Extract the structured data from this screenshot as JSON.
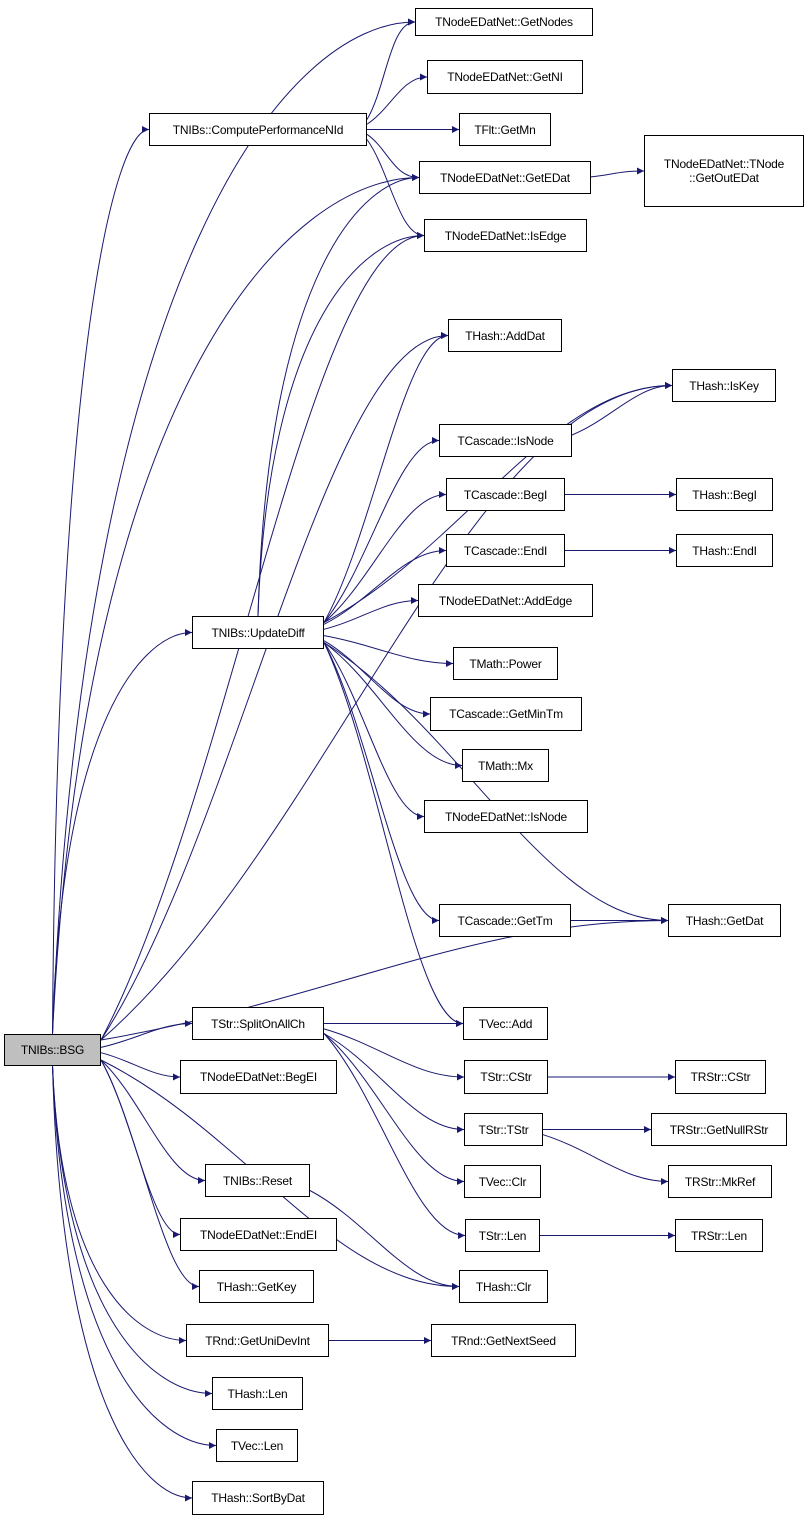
{
  "colors": {
    "edge": "#191970",
    "root_fill": "#bfbfbf",
    "node_fill": "#ffffff"
  },
  "nodes": {
    "bsg": "TNIBs::BSG",
    "getnodes": "TNodeEDatNet::GetNodes",
    "getni": "TNodeEDatNet::GetNI",
    "compute": "TNIBs::ComputePerformanceNId",
    "getmn": "TFlt::GetMn",
    "getedat": "TNodeEDatNet::GetEDat",
    "getoutedat": "TNodeEDatNet::TNode\n::GetOutEDat",
    "isedge": "TNodeEDatNet::IsEdge",
    "adddat": "THash::AddDat",
    "iskey": "THash::IsKey",
    "casisnode": "TCascade::IsNode",
    "casbegi": "TCascade::BegI",
    "hashbegi": "THash::BegI",
    "casendi": "TCascade::EndI",
    "hashendi": "THash::EndI",
    "updatediff": "TNIBs::UpdateDiff",
    "addedge": "TNodeEDatNet::AddEdge",
    "power": "TMath::Power",
    "getmintm": "TCascade::GetMinTm",
    "mx": "TMath::Mx",
    "netisnode": "TNodeEDatNet::IsNode",
    "gettm": "TCascade::GetTm",
    "getdat": "THash::GetDat",
    "vecadd": "TVec::Add",
    "split": "TStr::SplitOnAllCh",
    "begei": "TNodeEDatNet::BegEI",
    "strcstr": "TStr::CStr",
    "rstrcstr": "TRStr::CStr",
    "strtstr": "TStr::TStr",
    "getnullrstr": "TRStr::GetNullRStr",
    "vecclr": "TVec::Clr",
    "mkref": "TRStr::MkRef",
    "strlen": "TStr::Len",
    "rstrlen": "TRStr::Len",
    "reset": "TNIBs::Reset",
    "hashclr": "THash::Clr",
    "endei": "TNodeEDatNet::EndEI",
    "getkey": "THash::GetKey",
    "unidevint": "TRnd::GetUniDevInt",
    "nextseed": "TRnd::GetNextSeed",
    "hashlen": "THash::Len",
    "veclen": "TVec::Len",
    "sortbydat": "THash::SortByDat"
  },
  "edges": [
    [
      "bsg",
      "getnodes"
    ],
    [
      "bsg",
      "compute"
    ],
    [
      "bsg",
      "getedat"
    ],
    [
      "bsg",
      "isedge"
    ],
    [
      "bsg",
      "iskey"
    ],
    [
      "bsg",
      "adddat"
    ],
    [
      "bsg",
      "updatediff"
    ],
    [
      "bsg",
      "getdat"
    ],
    [
      "bsg",
      "split"
    ],
    [
      "bsg",
      "begei"
    ],
    [
      "bsg",
      "hashclr"
    ],
    [
      "bsg",
      "reset"
    ],
    [
      "bsg",
      "endei"
    ],
    [
      "bsg",
      "getkey"
    ],
    [
      "bsg",
      "unidevint"
    ],
    [
      "bsg",
      "hashlen"
    ],
    [
      "bsg",
      "veclen"
    ],
    [
      "bsg",
      "sortbydat"
    ],
    [
      "compute",
      "getnodes"
    ],
    [
      "compute",
      "getni"
    ],
    [
      "compute",
      "getmn"
    ],
    [
      "compute",
      "getedat"
    ],
    [
      "compute",
      "isedge"
    ],
    [
      "getedat",
      "getoutedat"
    ],
    [
      "updatediff",
      "getedat"
    ],
    [
      "updatediff",
      "isedge"
    ],
    [
      "updatediff",
      "adddat"
    ],
    [
      "updatediff",
      "iskey"
    ],
    [
      "updatediff",
      "casisnode"
    ],
    [
      "updatediff",
      "casbegi"
    ],
    [
      "updatediff",
      "casendi"
    ],
    [
      "updatediff",
      "addedge"
    ],
    [
      "updatediff",
      "power"
    ],
    [
      "updatediff",
      "getmintm"
    ],
    [
      "updatediff",
      "mx"
    ],
    [
      "updatediff",
      "netisnode"
    ],
    [
      "updatediff",
      "getdat"
    ],
    [
      "updatediff",
      "gettm"
    ],
    [
      "updatediff",
      "vecadd"
    ],
    [
      "casisnode",
      "iskey"
    ],
    [
      "casbegi",
      "hashbegi"
    ],
    [
      "casendi",
      "hashendi"
    ],
    [
      "gettm",
      "getdat"
    ],
    [
      "split",
      "vecadd"
    ],
    [
      "split",
      "strcstr"
    ],
    [
      "split",
      "strtstr"
    ],
    [
      "split",
      "vecclr"
    ],
    [
      "split",
      "strlen"
    ],
    [
      "strcstr",
      "rstrcstr"
    ],
    [
      "strtstr",
      "getnullrstr"
    ],
    [
      "strtstr",
      "mkref"
    ],
    [
      "strlen",
      "rstrlen"
    ],
    [
      "reset",
      "hashclr"
    ],
    [
      "unidevint",
      "nextseed"
    ]
  ]
}
